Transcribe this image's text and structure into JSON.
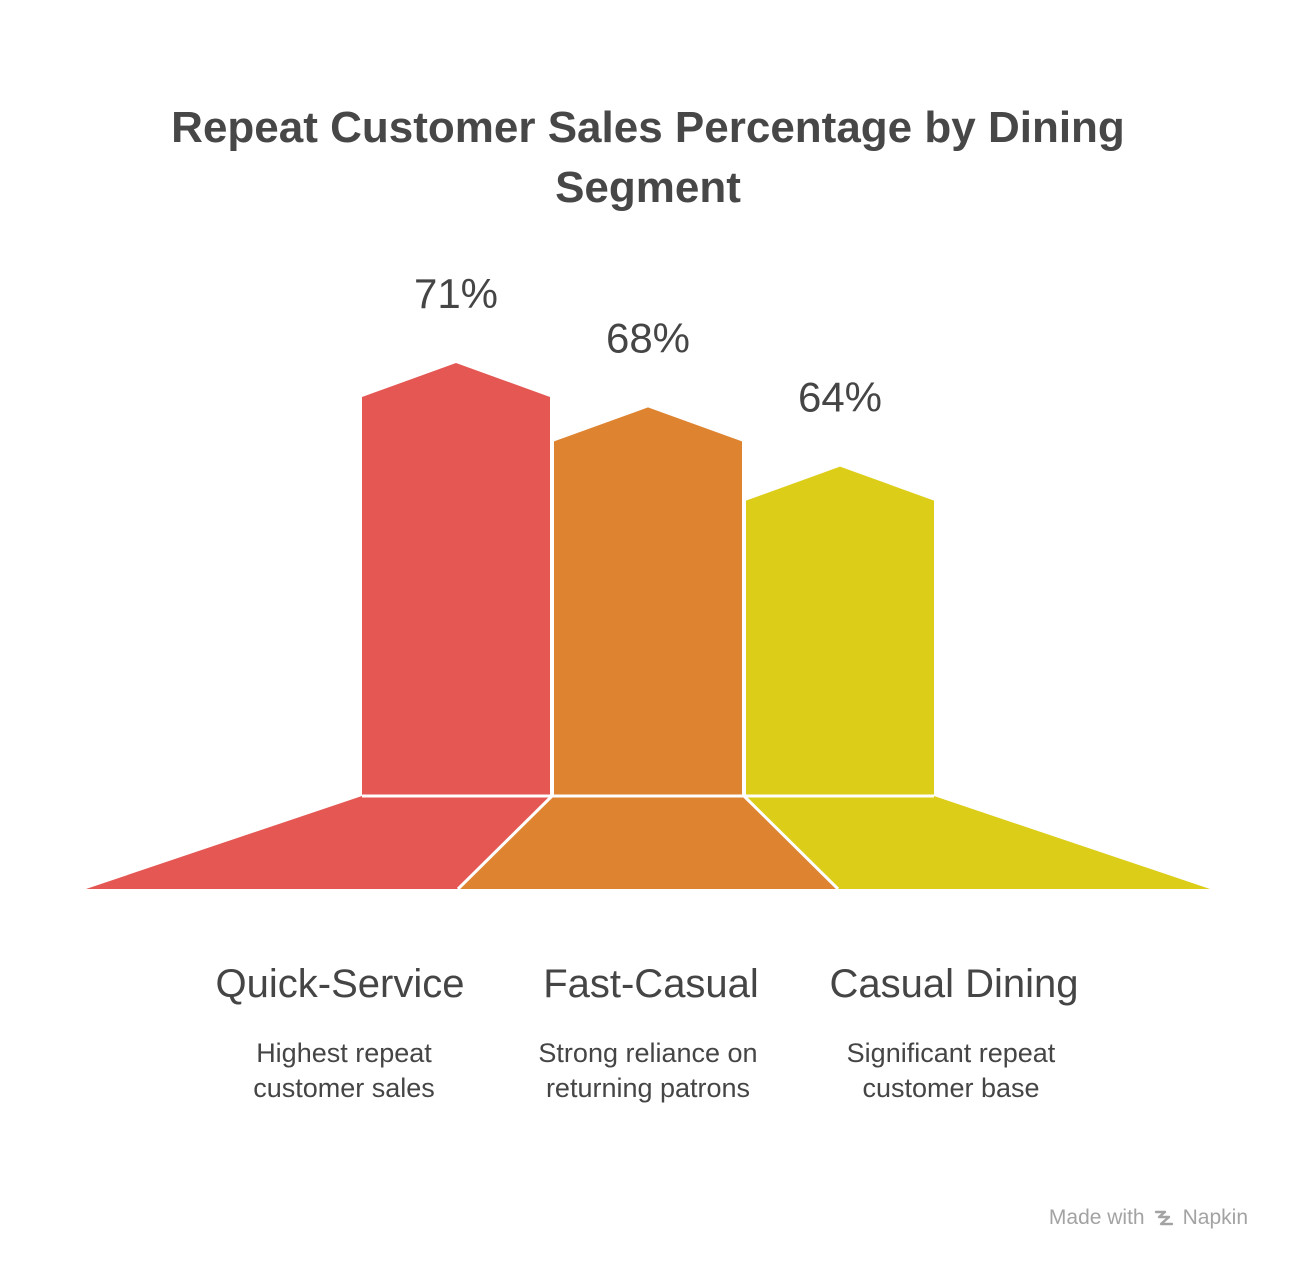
{
  "title_line1": "Repeat Customer Sales Percentage by Dining",
  "title_line2": "Segment",
  "chart_data": {
    "type": "bar",
    "title": "Repeat Customer Sales Percentage by Dining Segment",
    "categories": [
      "Quick-Service",
      "Fast-Casual",
      "Casual Dining"
    ],
    "values": [
      71,
      68,
      64
    ],
    "value_labels": [
      "71%",
      "68%",
      "64%"
    ],
    "unit": "%",
    "colors": [
      "#e55753",
      "#de8431",
      "#dccd18"
    ],
    "descriptions": [
      [
        "Highest repeat",
        "customer sales"
      ],
      [
        "Strong reliance on",
        "returning patrons"
      ],
      [
        "Significant repeat",
        "customer base"
      ]
    ]
  },
  "footer": {
    "made_with": "Made with",
    "brand": "Napkin",
    "icon": "napkin-logo-icon",
    "color": "#a3a3a3"
  }
}
